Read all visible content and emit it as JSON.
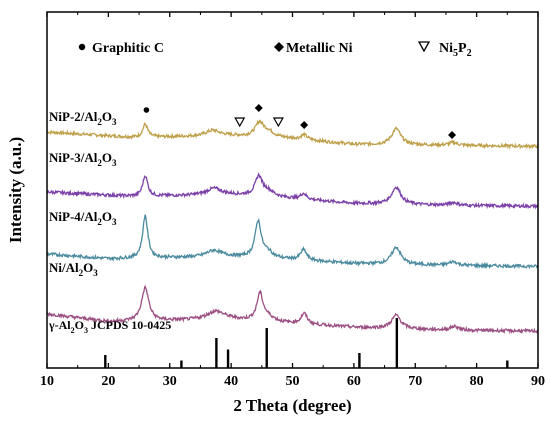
{
  "chart_data": {
    "type": "line",
    "xlabel": "2 Theta (degree)",
    "ylabel": "Intensity (a.u.)",
    "xlim": [
      10,
      90
    ],
    "x_ticks": [
      10,
      20,
      30,
      40,
      50,
      60,
      70,
      80,
      90
    ],
    "y_ticks_shown": false,
    "legend": {
      "placement": "top",
      "entries": [
        {
          "symbol": "circle",
          "label": "Graphitic C"
        },
        {
          "symbol": "diamond",
          "label": "Metallic Ni"
        },
        {
          "symbol": "triangle-down-open",
          "label": "Ni",
          "sub1": "5",
          "mid": "P",
          "sub2": "2"
        }
      ]
    },
    "series": [
      {
        "name": "NiP-2/Al2O3",
        "label_parts": [
          "NiP-2/Al",
          "2",
          "O",
          "3"
        ],
        "color": "#bfa04a",
        "baseline": [
          [
            10,
            78
          ],
          [
            25,
            72
          ],
          [
            30,
            73
          ],
          [
            40,
            74
          ],
          [
            50,
            71
          ],
          [
            60,
            65
          ],
          [
            75,
            64
          ],
          [
            90,
            63
          ]
        ],
        "peaks": [
          [
            26.0,
            14,
            0.5
          ],
          [
            37.0,
            6,
            1.4
          ],
          [
            44.6,
            14,
            0.8
          ],
          [
            46.0,
            6,
            1.2
          ],
          [
            51.9,
            5,
            0.6
          ],
          [
            66.9,
            17,
            0.9
          ],
          [
            76.2,
            3,
            0.8
          ]
        ],
        "markers": [
          {
            "x": 26.2,
            "symbol": "circle"
          },
          {
            "x": 41.4,
            "symbol": "triangle-down-open"
          },
          {
            "x": 44.5,
            "symbol": "diamond"
          },
          {
            "x": 47.7,
            "symbol": "triangle-down-open"
          },
          {
            "x": 51.9,
            "symbol": "diamond"
          },
          {
            "x": 76.0,
            "symbol": "diamond"
          }
        ]
      },
      {
        "name": "NiP-3/Al2O3",
        "label_parts": [
          "NiP-3/Al",
          "2",
          "O",
          "3"
        ],
        "color": "#7b3fa8",
        "baseline": [
          [
            10,
            50
          ],
          [
            25,
            45
          ],
          [
            30,
            46
          ],
          [
            40,
            47
          ],
          [
            50,
            43
          ],
          [
            60,
            38
          ],
          [
            75,
            36
          ],
          [
            90,
            35
          ]
        ],
        "peaks": [
          [
            26.0,
            22,
            0.5
          ],
          [
            37.2,
            7,
            1.5
          ],
          [
            44.5,
            20,
            0.7
          ],
          [
            46.0,
            6,
            1.2
          ],
          [
            51.8,
            6,
            0.6
          ],
          [
            66.9,
            18,
            0.9
          ],
          [
            76.2,
            3,
            0.8
          ]
        ],
        "markers": []
      },
      {
        "name": "NiP-4/Al2O3",
        "label_parts": [
          "NiP-4/Al",
          "2",
          "O",
          "3"
        ],
        "color": "#4a8a9e",
        "baseline": [
          [
            10,
            22
          ],
          [
            20,
            17
          ],
          [
            30,
            18
          ],
          [
            40,
            19
          ],
          [
            50,
            16
          ],
          [
            60,
            12
          ],
          [
            75,
            10
          ],
          [
            90,
            9
          ]
        ],
        "peaks": [
          [
            26.0,
            45,
            0.5
          ],
          [
            37.2,
            7,
            1.5
          ],
          [
            44.4,
            38,
            0.6
          ],
          [
            46.0,
            6,
            1.0
          ],
          [
            51.8,
            11,
            0.6
          ],
          [
            66.9,
            18,
            0.9
          ],
          [
            76.2,
            4,
            0.8
          ]
        ],
        "markers": []
      },
      {
        "name": "Ni/Al2O3",
        "label_parts": [
          "Ni/Al",
          "2",
          "O",
          "3"
        ],
        "color": "#9b4f82",
        "baseline": [
          [
            10,
            4
          ],
          [
            20,
            -4
          ],
          [
            30,
            -3
          ],
          [
            40,
            -2
          ],
          [
            50,
            -6
          ],
          [
            60,
            -10
          ],
          [
            75,
            -13
          ],
          [
            90,
            -14
          ]
        ],
        "peaks": [
          [
            26.0,
            35,
            0.7
          ],
          [
            37.5,
            9,
            1.8
          ],
          [
            44.7,
            28,
            0.6
          ],
          [
            46.0,
            5,
            1.2
          ],
          [
            51.9,
            11,
            0.6
          ],
          [
            66.9,
            14,
            0.9
          ],
          [
            76.4,
            4,
            0.8
          ]
        ],
        "markers": []
      }
    ],
    "reference": {
      "label_parts": [
        "γ-Al",
        "2",
        "O",
        "3",
        " JCPDS 10-0425"
      ],
      "lines": [
        {
          "x": 19.5,
          "h": 0.26
        },
        {
          "x": 31.9,
          "h": 0.15
        },
        {
          "x": 37.6,
          "h": 0.6
        },
        {
          "x": 39.5,
          "h": 0.37
        },
        {
          "x": 45.8,
          "h": 0.8
        },
        {
          "x": 60.9,
          "h": 0.3
        },
        {
          "x": 67.0,
          "h": 1.0
        },
        {
          "x": 85.0,
          "h": 0.15
        }
      ]
    }
  }
}
